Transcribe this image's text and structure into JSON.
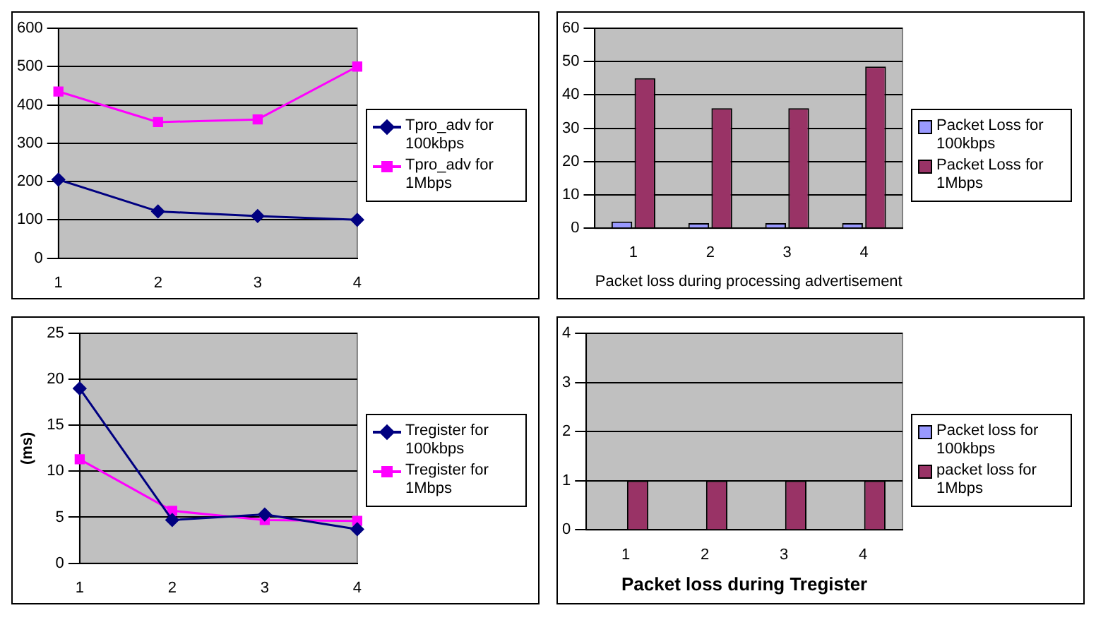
{
  "chart_data": [
    {
      "type": "line",
      "categories": [
        "1",
        "2",
        "3",
        "4"
      ],
      "ylim": [
        0,
        600
      ],
      "yticks": [
        0,
        100,
        200,
        300,
        400,
        500,
        600
      ],
      "grid": "y",
      "legend": "right",
      "series": [
        {
          "name": "Tpro_adv for 100kbps",
          "color": "#000080",
          "marker": "diamond",
          "values": [
            205,
            122,
            110,
            100
          ]
        },
        {
          "name": "Tpro_adv for 1Mbps",
          "color": "#ff00ff",
          "marker": "square",
          "values": [
            435,
            355,
            362,
            500
          ]
        }
      ]
    },
    {
      "type": "bar",
      "categories": [
        "1",
        "2",
        "3",
        "4"
      ],
      "xlabel": "Packet loss during processing advertisement",
      "ylim": [
        0,
        60
      ],
      "yticks": [
        0,
        10,
        20,
        30,
        40,
        50,
        60
      ],
      "grid": "y",
      "legend": "right",
      "series": [
        {
          "name": "Packet Loss for 100kbps",
          "color": "#9999ff",
          "values": [
            2,
            1.5,
            1.5,
            1.5
          ]
        },
        {
          "name": "Packet Loss for 1Mbps",
          "color": "#993366",
          "values": [
            45,
            36,
            36,
            48.5
          ]
        }
      ]
    },
    {
      "type": "line",
      "categories": [
        "1",
        "2",
        "3",
        "4"
      ],
      "ylabel": "(ms)",
      "ylim": [
        0,
        25
      ],
      "yticks": [
        0,
        5,
        10,
        15,
        20,
        25
      ],
      "grid": "y",
      "legend": "right",
      "series": [
        {
          "name": "Tregister for 100kbps",
          "color": "#000080",
          "marker": "diamond",
          "values": [
            19,
            4.7,
            5.3,
            3.7
          ]
        },
        {
          "name": "Tregister for 1Mbps",
          "color": "#ff00ff",
          "marker": "square",
          "values": [
            11.3,
            5.7,
            4.7,
            4.6
          ]
        }
      ]
    },
    {
      "type": "bar",
      "categories": [
        "1",
        "2",
        "3",
        "4"
      ],
      "xlabel": "Packet loss during Tregister",
      "ylim": [
        0,
        4
      ],
      "yticks": [
        0,
        1,
        2,
        3,
        4
      ],
      "grid": "y",
      "legend": "right",
      "series": [
        {
          "name": "Packet loss for 100kbps",
          "color": "#9999ff",
          "values": [
            0,
            0,
            0,
            0
          ]
        },
        {
          "name": "packet loss for 1Mbps",
          "color": "#993366",
          "values": [
            1,
            1,
            1,
            1
          ]
        }
      ]
    }
  ]
}
